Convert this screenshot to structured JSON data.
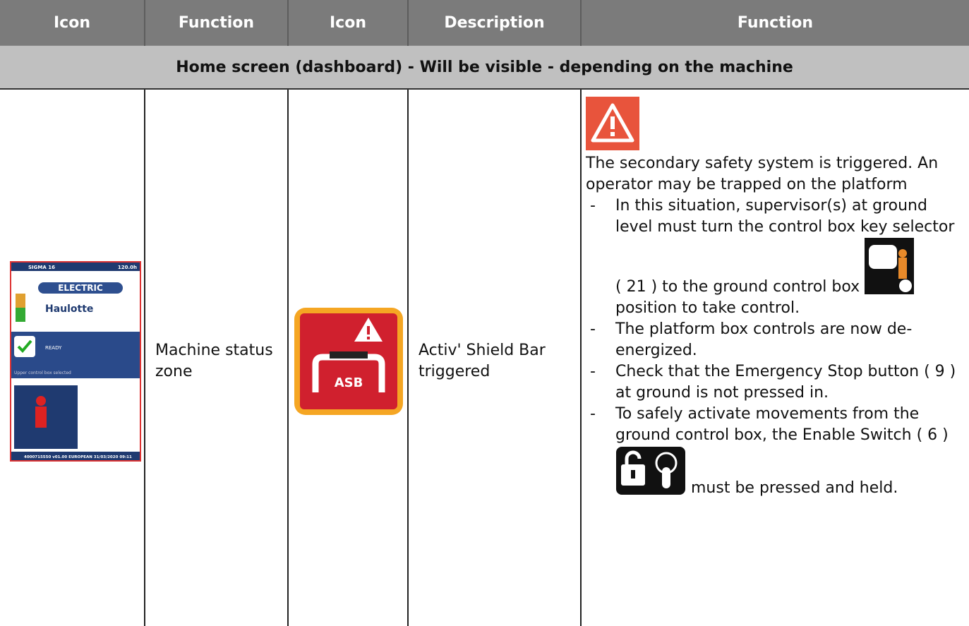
{
  "table": {
    "headers": [
      "Icon",
      "Function",
      "Icon",
      "Description",
      "Function"
    ],
    "section": "Home screen (dashboard)  -  Will be visible - depending on the machine",
    "rows": [
      [
        {
          "model": "SIGMA 16",
          "hours": "120.0h",
          "energy": "ELECTRIC",
          "brand": "Haulotte",
          "status": "READY",
          "selection": "Upper control box selected",
          "footer": "4000715550  v01.00  EUROPEAN  31/03/2020 09:11"
        },
        "Machine status zone",
        {
          "label": "ASB"
        },
        "Activ' Shield Bar triggered",
        {
          "intro": "The secondary safety system is triggered. An operator may be trapped on the platform",
          "items": [
            {
              "before": "In this situation, supervisor(s) at ground level must turn the control box key selector ( 21 ) to the ground control box",
              "after": "position to take control."
            },
            {
              "text": "The platform box controls are now de-energized."
            },
            {
              "text": "Check that the Emergency Stop button ( 9 ) at ground is not pressed in."
            },
            {
              "before": "To safely activate movements from the ground control box, the Enable Switch ( 6 )",
              "after": "must be pressed and held."
            }
          ]
        }
      ]
    ]
  }
}
